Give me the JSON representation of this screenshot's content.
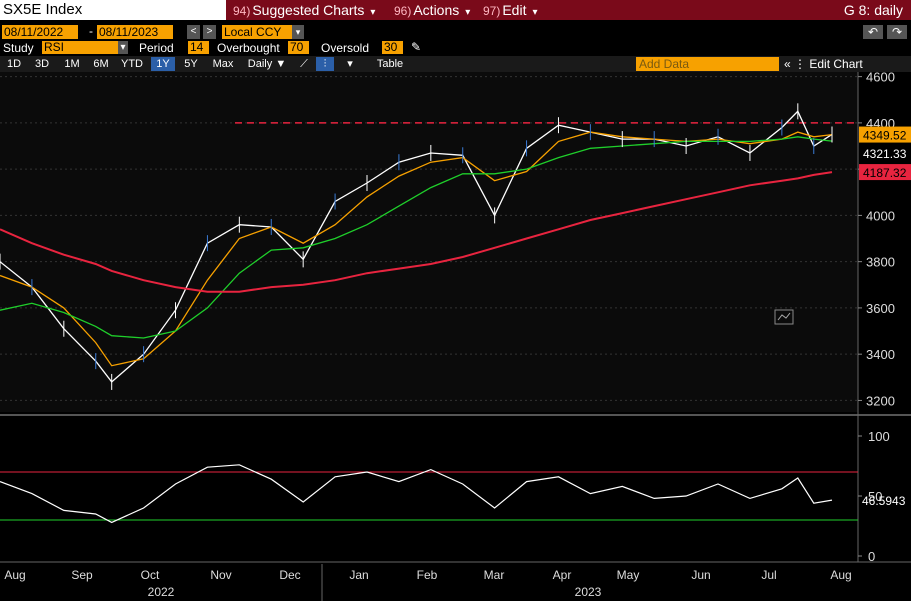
{
  "toolbar": {
    "ticker": "SX5E Index",
    "menus": [
      {
        "num": "94)",
        "label": "Suggested Charts"
      },
      {
        "num": "96)",
        "label": "Actions"
      },
      {
        "num": "97)",
        "label": "Edit"
      }
    ],
    "right_title": "G 8: daily",
    "start_date": "08/11/2022",
    "end_date": "08/11/2023",
    "date_sep": "-",
    "currency": "Local CCY",
    "study_label": "Study",
    "study_value": "RSI",
    "period_label": "Period",
    "period_value": "14",
    "overbought_label": "Overbought",
    "overbought_value": "70",
    "oversold_label": "Oversold",
    "oversold_value": "30",
    "ranges": [
      "1D",
      "3D",
      "1M",
      "6M",
      "YTD",
      "1Y",
      "5Y",
      "Max"
    ],
    "selected_range": "1Y",
    "frequency": "Daily",
    "table_label": "Table",
    "add_data_placeholder": "Add Data",
    "edit_chart_label": "Edit Chart",
    "colors": {
      "accent": "#f7a100",
      "header": "#7a0a1a",
      "selected": "#2b5fa8"
    }
  },
  "chart_data": [
    {
      "type": "line",
      "ylim": [
        3150,
        4620
      ],
      "y_ticks": [
        3200,
        3400,
        3600,
        3800,
        4000,
        4200,
        4400,
        4600
      ],
      "x_month_labels": [
        "Aug",
        "Sep",
        "Oct",
        "Nov",
        "Dec",
        "Jan",
        "Feb",
        "Mar",
        "Apr",
        "May",
        "Jun",
        "Jul",
        "Aug"
      ],
      "x_year_labels": [
        "2022",
        "2023"
      ],
      "x": [
        "2022-08-11",
        "2022-08-25",
        "2022-09-08",
        "2022-09-22",
        "2022-09-29",
        "2022-10-13",
        "2022-10-27",
        "2022-11-10",
        "2022-11-24",
        "2022-12-08",
        "2022-12-22",
        "2023-01-05",
        "2023-01-19",
        "2023-02-02",
        "2023-02-16",
        "2023-03-02",
        "2023-03-16",
        "2023-03-30",
        "2023-04-13",
        "2023-04-27",
        "2023-05-11",
        "2023-05-25",
        "2023-06-08",
        "2023-06-22",
        "2023-07-06",
        "2023-07-20",
        "2023-07-27",
        "2023-08-03",
        "2023-08-11"
      ],
      "series": [
        {
          "values": [
            3800,
            3690,
            3510,
            3370,
            3280,
            3400,
            3590,
            3880,
            3960,
            3950,
            3810,
            4060,
            4140,
            4230,
            4270,
            4260,
            4000,
            4290,
            4390,
            4360,
            4330,
            4330,
            4300,
            4340,
            4270,
            4380,
            4450,
            4300,
            4350
          ],
          "color": "#ffffff"
        },
        {
          "values": [
            3740,
            3690,
            3600,
            3450,
            3350,
            3380,
            3500,
            3720,
            3900,
            3950,
            3880,
            3960,
            4080,
            4170,
            4230,
            4250,
            4150,
            4190,
            4320,
            4360,
            4340,
            4330,
            4320,
            4330,
            4310,
            4330,
            4360,
            4340,
            4349.52
          ],
          "color": "#f7a100"
        },
        {
          "values": [
            3590,
            3620,
            3580,
            3520,
            3480,
            3470,
            3500,
            3600,
            3750,
            3850,
            3860,
            3900,
            3960,
            4040,
            4120,
            4180,
            4180,
            4200,
            4250,
            4290,
            4300,
            4310,
            4320,
            4320,
            4320,
            4330,
            4340,
            4330,
            4321.33
          ],
          "color": "#1fcf2b"
        },
        {
          "values": [
            3940,
            3880,
            3830,
            3790,
            3760,
            3720,
            3690,
            3670,
            3670,
            3690,
            3700,
            3720,
            3750,
            3770,
            3790,
            3820,
            3860,
            3900,
            3940,
            3980,
            4010,
            4040,
            4070,
            4100,
            4130,
            4150,
            4160,
            4175,
            4187.32
          ],
          "color": "#e8243f"
        }
      ],
      "reference_line": {
        "value": 4400,
        "color": "#e8243f"
      },
      "last_values": [
        "4349.52",
        "4321.33",
        "4187.32"
      ]
    },
    {
      "type": "line",
      "ylim": [
        -5,
        110
      ],
      "y_ticks": [
        0,
        50,
        100
      ],
      "overbought": 70,
      "oversold": 30,
      "x": [
        "2022-08-11",
        "2022-08-25",
        "2022-09-08",
        "2022-09-22",
        "2022-09-29",
        "2022-10-13",
        "2022-10-27",
        "2022-11-10",
        "2022-11-24",
        "2022-12-08",
        "2022-12-22",
        "2023-01-05",
        "2023-01-19",
        "2023-02-02",
        "2023-02-16",
        "2023-03-02",
        "2023-03-16",
        "2023-03-30",
        "2023-04-13",
        "2023-04-27",
        "2023-05-11",
        "2023-05-25",
        "2023-06-08",
        "2023-06-22",
        "2023-07-06",
        "2023-07-20",
        "2023-07-27",
        "2023-08-03",
        "2023-08-11"
      ],
      "series": [
        {
          "values": [
            62,
            52,
            38,
            35,
            28,
            40,
            60,
            74,
            76,
            64,
            45,
            66,
            70,
            62,
            72,
            60,
            40,
            62,
            66,
            52,
            58,
            48,
            50,
            60,
            48,
            56,
            65,
            44,
            46.5943
          ],
          "color": "#ffffff"
        }
      ],
      "last_value": "46.5943"
    }
  ]
}
